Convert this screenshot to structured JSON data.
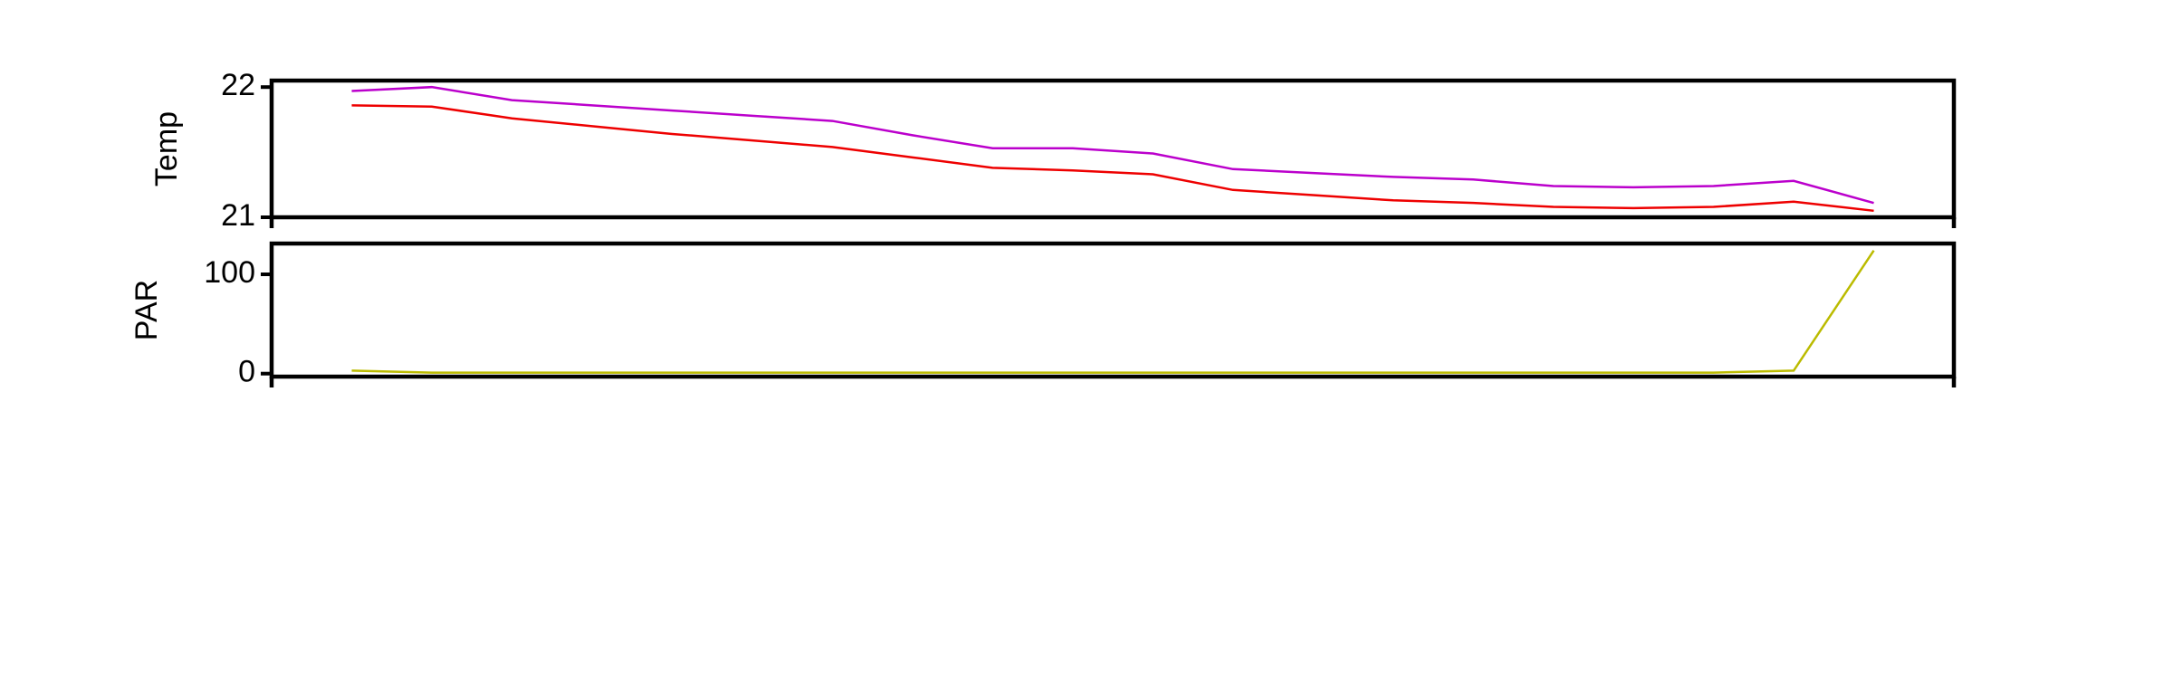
{
  "chart_data": [
    {
      "type": "line",
      "ylabel": "Temp",
      "x": [
        0,
        1,
        2,
        3,
        4,
        5,
        6,
        7,
        8,
        9,
        10,
        11,
        12,
        13,
        14,
        15,
        16,
        17,
        18,
        19
      ],
      "xlim": [
        -1,
        20
      ],
      "ylim": [
        21,
        22.05
      ],
      "yticks": [
        21,
        22
      ],
      "series": [
        {
          "color": "#bb00cc",
          "values": [
            21.97,
            22.0,
            21.9,
            21.86,
            21.82,
            21.78,
            21.74,
            21.63,
            21.53,
            21.53,
            21.49,
            21.37,
            21.34,
            21.31,
            21.29,
            21.24,
            21.23,
            21.24,
            21.28,
            21.11
          ]
        },
        {
          "color": "#ee0000",
          "values": [
            21.86,
            21.85,
            21.76,
            21.7,
            21.64,
            21.59,
            21.54,
            21.46,
            21.38,
            21.36,
            21.33,
            21.21,
            21.17,
            21.13,
            21.11,
            21.08,
            21.07,
            21.08,
            21.12,
            21.05
          ]
        }
      ]
    },
    {
      "type": "line",
      "ylabel": "PAR",
      "x": [
        0,
        1,
        2,
        3,
        4,
        5,
        6,
        7,
        8,
        9,
        10,
        11,
        12,
        13,
        14,
        15,
        16,
        17,
        18,
        19
      ],
      "xlim": [
        -1,
        20
      ],
      "ylim": [
        -3,
        131
      ],
      "yticks": [
        0,
        100
      ],
      "series": [
        {
          "color": "#bbbb00",
          "values": [
            3,
            1,
            1,
            1,
            1,
            1,
            1,
            1,
            1,
            1,
            1,
            1,
            1,
            1,
            1,
            1,
            1,
            1,
            3,
            124
          ]
        }
      ]
    }
  ]
}
